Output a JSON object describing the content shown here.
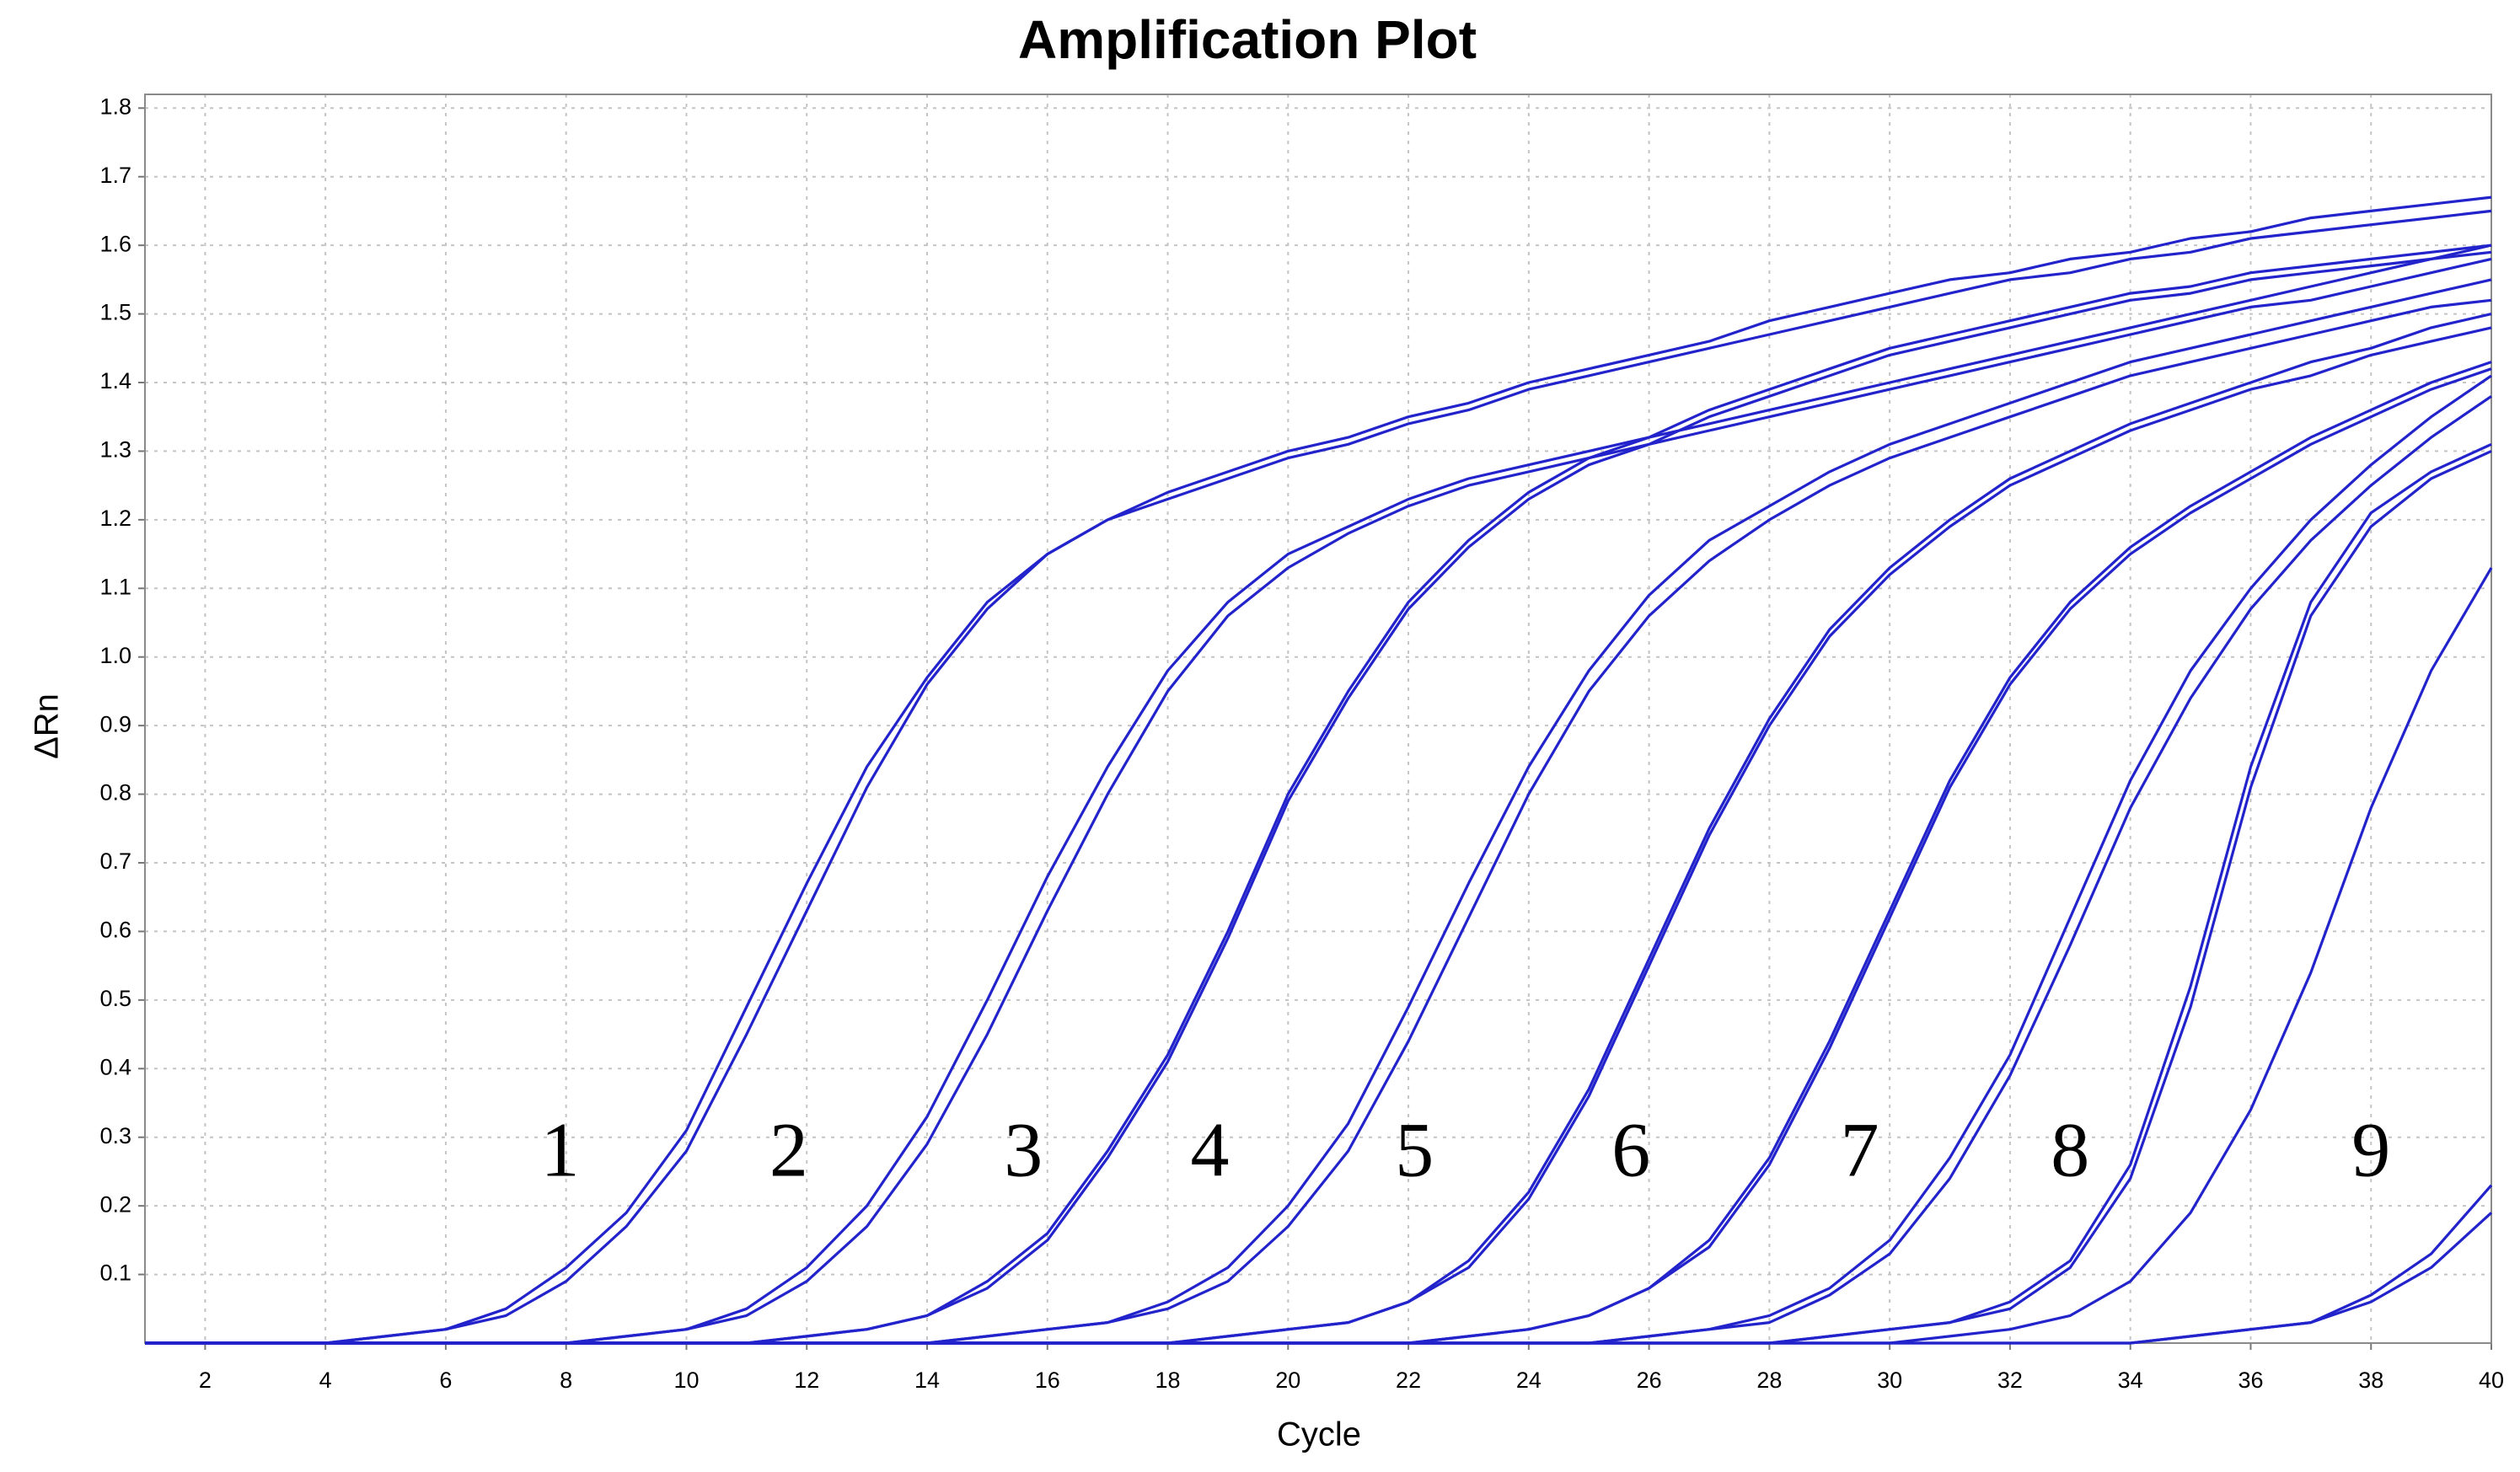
{
  "chart_data": {
    "type": "line",
    "title": "Amplification Plot",
    "x_label": "Cycle",
    "y_label": "ΔRn",
    "color": "#2323cc",
    "grid": true,
    "xlim": [
      1,
      40
    ],
    "ylim": [
      0,
      1.82
    ],
    "xticks": [
      2,
      4,
      6,
      8,
      10,
      12,
      14,
      16,
      18,
      20,
      22,
      24,
      26,
      28,
      30,
      32,
      34,
      36,
      38,
      40
    ],
    "yticks": [
      0.1,
      0.2,
      0.3,
      0.4,
      0.5,
      0.6,
      0.7,
      0.8,
      0.9,
      {
        "value": 1,
        "label": "1.0"
      },
      1.1,
      1.2,
      1.3,
      1.4,
      1.5,
      1.6,
      1.7,
      1.8
    ],
    "x": [
      1,
      2,
      3,
      4,
      5,
      6,
      7,
      8,
      9,
      10,
      11,
      12,
      13,
      14,
      15,
      16,
      17,
      18,
      19,
      20,
      21,
      22,
      23,
      24,
      25,
      26,
      27,
      28,
      29,
      30,
      31,
      32,
      33,
      34,
      35,
      36,
      37,
      38,
      39,
      40
    ],
    "series": [
      {
        "values": [
          0,
          0,
          0,
          0,
          0.01,
          0.02,
          0.05,
          0.11,
          0.19,
          0.31,
          0.49,
          0.67,
          0.84,
          0.97,
          1.08,
          1.15,
          1.2,
          1.24,
          1.27,
          1.3,
          1.32,
          1.35,
          1.37,
          1.4,
          1.42,
          1.44,
          1.46,
          1.49,
          1.51,
          1.53,
          1.55,
          1.56,
          1.58,
          1.59,
          1.61,
          1.62,
          1.64,
          1.65,
          1.66,
          1.67
        ]
      },
      {
        "values": [
          0,
          0,
          0,
          0,
          0.01,
          0.02,
          0.04,
          0.09,
          0.17,
          0.28,
          0.45,
          0.63,
          0.81,
          0.96,
          1.07,
          1.15,
          1.2,
          1.23,
          1.26,
          1.29,
          1.31,
          1.34,
          1.36,
          1.39,
          1.41,
          1.43,
          1.45,
          1.47,
          1.49,
          1.51,
          1.53,
          1.55,
          1.56,
          1.58,
          1.59,
          1.61,
          1.62,
          1.63,
          1.64,
          1.65
        ]
      },
      {
        "values": [
          0,
          0,
          0,
          0,
          0,
          0,
          0,
          0,
          0.01,
          0.02,
          0.05,
          0.11,
          0.2,
          0.33,
          0.5,
          0.68,
          0.84,
          0.98,
          1.08,
          1.15,
          1.19,
          1.23,
          1.26,
          1.28,
          1.3,
          1.32,
          1.34,
          1.36,
          1.38,
          1.4,
          1.42,
          1.44,
          1.46,
          1.48,
          1.5,
          1.52,
          1.54,
          1.56,
          1.58,
          1.6
        ]
      },
      {
        "values": [
          0,
          0,
          0,
          0,
          0,
          0,
          0,
          0,
          0.01,
          0.02,
          0.04,
          0.09,
          0.17,
          0.29,
          0.45,
          0.63,
          0.8,
          0.95,
          1.06,
          1.13,
          1.18,
          1.22,
          1.25,
          1.27,
          1.29,
          1.31,
          1.33,
          1.35,
          1.37,
          1.39,
          1.41,
          1.43,
          1.45,
          1.47,
          1.49,
          1.51,
          1.52,
          1.54,
          1.56,
          1.58
        ]
      },
      {
        "values": [
          0,
          0,
          0,
          0,
          0,
          0,
          0,
          0,
          0,
          0,
          0,
          0.01,
          0.02,
          0.04,
          0.09,
          0.16,
          0.28,
          0.42,
          0.6,
          0.8,
          0.95,
          1.08,
          1.17,
          1.24,
          1.29,
          1.32,
          1.36,
          1.39,
          1.42,
          1.45,
          1.47,
          1.49,
          1.51,
          1.53,
          1.54,
          1.56,
          1.57,
          1.58,
          1.59,
          1.6
        ]
      },
      {
        "values": [
          0,
          0,
          0,
          0,
          0,
          0,
          0,
          0,
          0,
          0,
          0,
          0.01,
          0.02,
          0.04,
          0.08,
          0.15,
          0.27,
          0.41,
          0.59,
          0.79,
          0.94,
          1.07,
          1.16,
          1.23,
          1.28,
          1.31,
          1.35,
          1.38,
          1.41,
          1.44,
          1.46,
          1.48,
          1.5,
          1.52,
          1.53,
          1.55,
          1.56,
          1.57,
          1.58,
          1.59
        ]
      },
      {
        "values": [
          0,
          0,
          0,
          0,
          0,
          0,
          0,
          0,
          0,
          0,
          0,
          0,
          0,
          0,
          0.01,
          0.02,
          0.03,
          0.06,
          0.11,
          0.2,
          0.32,
          0.49,
          0.67,
          0.84,
          0.98,
          1.09,
          1.17,
          1.22,
          1.27,
          1.31,
          1.34,
          1.37,
          1.4,
          1.43,
          1.45,
          1.47,
          1.49,
          1.51,
          1.53,
          1.55
        ]
      },
      {
        "values": [
          0,
          0,
          0,
          0,
          0,
          0,
          0,
          0,
          0,
          0,
          0,
          0,
          0,
          0,
          0.01,
          0.02,
          0.03,
          0.05,
          0.09,
          0.17,
          0.28,
          0.44,
          0.62,
          0.8,
          0.95,
          1.06,
          1.14,
          1.2,
          1.25,
          1.29,
          1.32,
          1.35,
          1.38,
          1.41,
          1.43,
          1.45,
          1.47,
          1.49,
          1.51,
          1.52
        ]
      },
      {
        "values": [
          0,
          0,
          0,
          0,
          0,
          0,
          0,
          0,
          0,
          0,
          0,
          0,
          0,
          0,
          0,
          0,
          0,
          0,
          0.01,
          0.02,
          0.03,
          0.06,
          0.12,
          0.22,
          0.37,
          0.56,
          0.75,
          0.91,
          1.04,
          1.13,
          1.2,
          1.26,
          1.3,
          1.34,
          1.37,
          1.4,
          1.43,
          1.45,
          1.48,
          1.5
        ]
      },
      {
        "values": [
          0,
          0,
          0,
          0,
          0,
          0,
          0,
          0,
          0,
          0,
          0,
          0,
          0,
          0,
          0,
          0,
          0,
          0,
          0.01,
          0.02,
          0.03,
          0.06,
          0.11,
          0.21,
          0.36,
          0.55,
          0.74,
          0.9,
          1.03,
          1.12,
          1.19,
          1.25,
          1.29,
          1.33,
          1.36,
          1.39,
          1.41,
          1.44,
          1.46,
          1.48
        ]
      },
      {
        "values": [
          0,
          0,
          0,
          0,
          0,
          0,
          0,
          0,
          0,
          0,
          0,
          0,
          0,
          0,
          0,
          0,
          0,
          0,
          0,
          0,
          0,
          0,
          0.01,
          0.02,
          0.04,
          0.08,
          0.15,
          0.27,
          0.44,
          0.63,
          0.82,
          0.97,
          1.08,
          1.16,
          1.22,
          1.27,
          1.32,
          1.36,
          1.4,
          1.43
        ]
      },
      {
        "values": [
          0,
          0,
          0,
          0,
          0,
          0,
          0,
          0,
          0,
          0,
          0,
          0,
          0,
          0,
          0,
          0,
          0,
          0,
          0,
          0,
          0,
          0,
          0.01,
          0.02,
          0.04,
          0.08,
          0.14,
          0.26,
          0.43,
          0.62,
          0.81,
          0.96,
          1.07,
          1.15,
          1.21,
          1.26,
          1.31,
          1.35,
          1.39,
          1.42
        ]
      },
      {
        "values": [
          0,
          0,
          0,
          0,
          0,
          0,
          0,
          0,
          0,
          0,
          0,
          0,
          0,
          0,
          0,
          0,
          0,
          0,
          0,
          0,
          0,
          0,
          0,
          0,
          0,
          0.01,
          0.02,
          0.04,
          0.08,
          0.15,
          0.27,
          0.42,
          0.62,
          0.82,
          0.98,
          1.1,
          1.2,
          1.28,
          1.35,
          1.41
        ]
      },
      {
        "values": [
          0,
          0,
          0,
          0,
          0,
          0,
          0,
          0,
          0,
          0,
          0,
          0,
          0,
          0,
          0,
          0,
          0,
          0,
          0,
          0,
          0,
          0,
          0,
          0,
          0,
          0.01,
          0.02,
          0.03,
          0.07,
          0.13,
          0.24,
          0.39,
          0.58,
          0.78,
          0.94,
          1.07,
          1.17,
          1.25,
          1.32,
          1.38
        ]
      },
      {
        "values": [
          0,
          0,
          0,
          0,
          0,
          0,
          0,
          0,
          0,
          0,
          0,
          0,
          0,
          0,
          0,
          0,
          0,
          0,
          0,
          0,
          0,
          0,
          0,
          0,
          0,
          0,
          0,
          0,
          0.01,
          0.02,
          0.03,
          0.06,
          0.12,
          0.26,
          0.52,
          0.84,
          1.08,
          1.21,
          1.27,
          1.31
        ]
      },
      {
        "values": [
          0,
          0,
          0,
          0,
          0,
          0,
          0,
          0,
          0,
          0,
          0,
          0,
          0,
          0,
          0,
          0,
          0,
          0,
          0,
          0,
          0,
          0,
          0,
          0,
          0,
          0,
          0,
          0,
          0.01,
          0.02,
          0.03,
          0.05,
          0.11,
          0.24,
          0.49,
          0.81,
          1.06,
          1.19,
          1.26,
          1.3
        ]
      },
      {
        "values": [
          0,
          0,
          0,
          0,
          0,
          0,
          0,
          0,
          0,
          0,
          0,
          0,
          0,
          0,
          0,
          0,
          0,
          0,
          0,
          0,
          0,
          0,
          0,
          0,
          0,
          0,
          0,
          0,
          0,
          0,
          0.01,
          0.02,
          0.04,
          0.09,
          0.19,
          0.34,
          0.54,
          0.78,
          0.98,
          1.13
        ]
      },
      {
        "values": [
          0,
          0,
          0,
          0,
          0,
          0,
          0,
          0,
          0,
          0,
          0,
          0,
          0,
          0,
          0,
          0,
          0,
          0,
          0,
          0,
          0,
          0,
          0,
          0,
          0,
          0,
          0,
          0,
          0,
          0,
          0,
          0,
          0,
          0,
          0.01,
          0.02,
          0.03,
          0.07,
          0.13,
          0.23
        ]
      },
      {
        "values": [
          0,
          0,
          0,
          0,
          0,
          0,
          0,
          0,
          0,
          0,
          0,
          0,
          0,
          0,
          0,
          0,
          0,
          0,
          0,
          0,
          0,
          0,
          0,
          0,
          0,
          0,
          0,
          0,
          0,
          0,
          0,
          0,
          0,
          0,
          0.01,
          0.02,
          0.03,
          0.06,
          0.11,
          0.19
        ]
      }
    ],
    "annotations": [
      {
        "text": "1",
        "x": 7.9,
        "y": 0.27
      },
      {
        "text": "2",
        "x": 11.7,
        "y": 0.27
      },
      {
        "text": "3",
        "x": 15.6,
        "y": 0.27
      },
      {
        "text": "4",
        "x": 18.7,
        "y": 0.27
      },
      {
        "text": "5",
        "x": 22.1,
        "y": 0.27
      },
      {
        "text": "6",
        "x": 25.7,
        "y": 0.27
      },
      {
        "text": "7",
        "x": 29.5,
        "y": 0.27
      },
      {
        "text": "8",
        "x": 33.0,
        "y": 0.27
      },
      {
        "text": "9",
        "x": 38.0,
        "y": 0.27
      }
    ]
  }
}
